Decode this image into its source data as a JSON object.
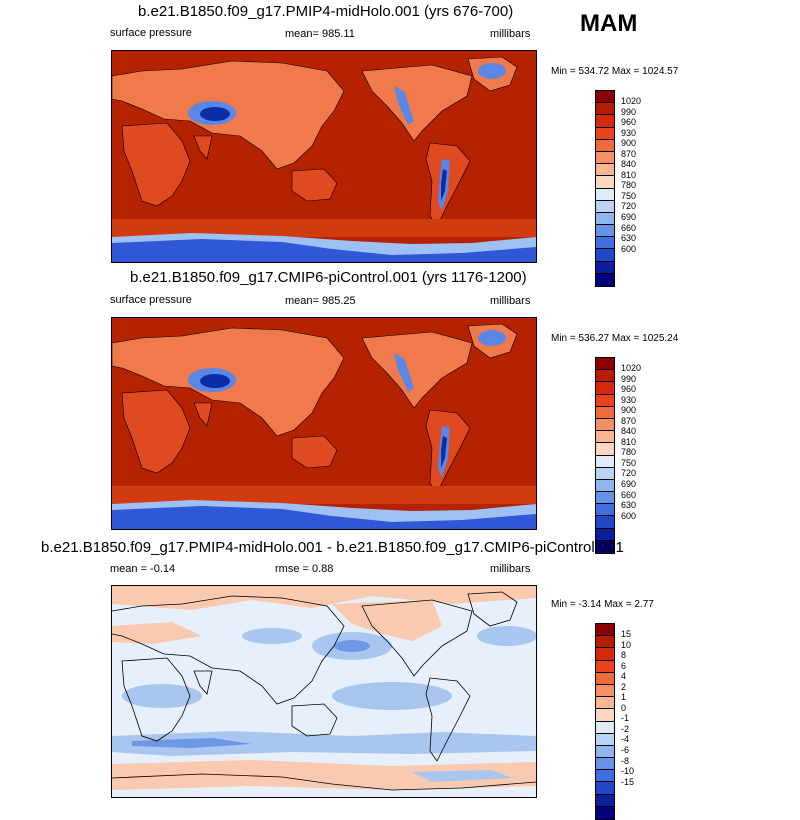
{
  "season": "MAM",
  "panels": [
    {
      "title": "b.e21.B1850.f09_g17.PMIP4-midHolo.001 (yrs 676-700)",
      "left_label": "surface pressure",
      "center_label": "mean= 985.11",
      "right_label": "millibars",
      "minmax": "Min = 534.72 Max = 1024.57"
    },
    {
      "title": "b.e21.B1850.f09_g17.CMIP6-piControl.001 (yrs 1176-1200)",
      "left_label": "surface pressure",
      "center_label": "mean= 985.25",
      "right_label": "millibars",
      "minmax": "Min = 536.27 Max = 1025.24"
    },
    {
      "title": "b.e21.B1850.f09_g17.PMIP4-midHolo.001 - b.e21.B1850.f09_g17.CMIP6-piControl.001",
      "left_label": "mean =  -0.14",
      "center_label": "rmse =   0.88",
      "right_label": "millibars",
      "minmax": "Min =  -3.14 Max =   2.77"
    }
  ],
  "colorbar_abs": {
    "labels": [
      "1020",
      "990",
      "960",
      "930",
      "900",
      "870",
      "840",
      "810",
      "780",
      "750",
      "720",
      "690",
      "660",
      "630",
      "600"
    ],
    "colors": [
      "#8b0000",
      "#b71c00",
      "#d42a0a",
      "#e8431c",
      "#f06a3c",
      "#f59066",
      "#f9b491",
      "#fbd6c1",
      "#deebf8",
      "#b8d3f4",
      "#8fb6ef",
      "#6593ea",
      "#3f6ee2",
      "#2247c8",
      "#0b1f9c",
      "#000080"
    ]
  },
  "colorbar_diff": {
    "labels": [
      "15",
      "10",
      "8",
      "6",
      "4",
      "2",
      "1",
      "0",
      "-1",
      "-2",
      "-4",
      "-6",
      "-8",
      "-10",
      "-15"
    ],
    "colors": [
      "#8b0000",
      "#b71c00",
      "#d42a0a",
      "#e8431c",
      "#f06a3c",
      "#f59066",
      "#f9b491",
      "#fbd6c1",
      "#deebf8",
      "#b8d3f4",
      "#8fb6ef",
      "#6593ea",
      "#3f6ee2",
      "#2247c8",
      "#0b1f9c",
      "#000080"
    ]
  },
  "map_colors": {
    "ocean": "#b52200",
    "land_high": "#e04a20",
    "land_mid": "#f07a4c",
    "plateau": "#0b2da6",
    "plateau_edge": "#5a86e4",
    "antarctic": "#2f57d6",
    "antarctic_edge": "#9fc0f2",
    "southern_band": "#d23a10",
    "diff_bg": "#e6effa",
    "diff_pos": "#f9c9b0",
    "diff_neg": "#a9c6f0",
    "diff_neg_dark": "#6e97e6"
  }
}
